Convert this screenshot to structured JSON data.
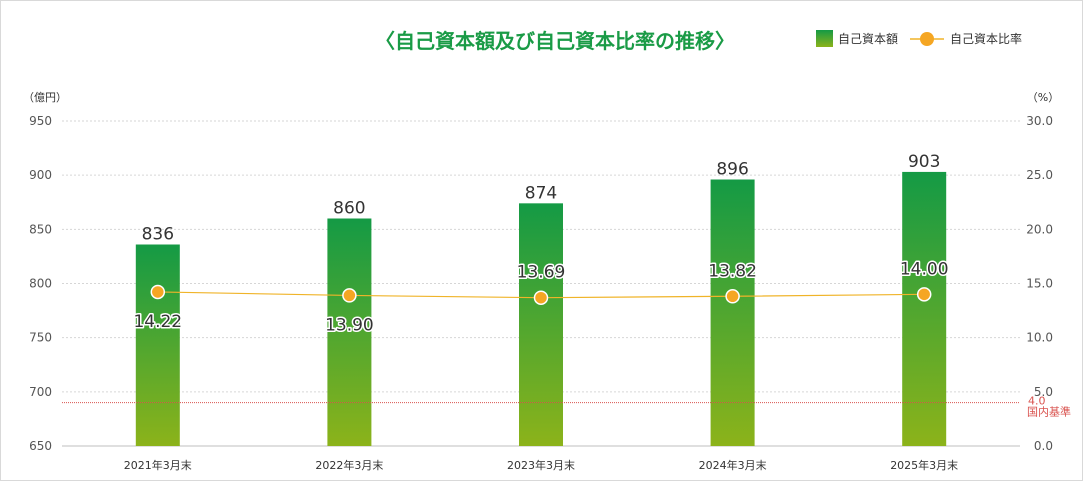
{
  "chart_data": {
    "type": "bar",
    "title": "〈自己資本額及び自己資本比率の推移〉",
    "categories": [
      "2021年3月末",
      "2022年3月末",
      "2023年3月末",
      "2024年3月末",
      "2025年3月末"
    ],
    "series": [
      {
        "name": "自己資本額",
        "type": "bar",
        "axis": "left",
        "values": [
          836,
          860,
          874,
          896,
          903
        ],
        "labels": [
          "836",
          "860",
          "874",
          "896",
          "903"
        ]
      },
      {
        "name": "自己資本比率",
        "type": "line",
        "axis": "right",
        "values": [
          14.22,
          13.9,
          13.69,
          13.82,
          14.0
        ],
        "labels": [
          "14.22",
          "13.90",
          "13.69",
          "13.82",
          "14.00"
        ]
      }
    ],
    "y_left": {
      "unit": "（億円）",
      "min": 650,
      "max": 950,
      "ticks": [
        "650",
        "700",
        "750",
        "800",
        "850",
        "900",
        "950"
      ]
    },
    "y_right": {
      "unit": "（%）",
      "min": 0,
      "max": 30,
      "ticks": [
        "0.0",
        "5.0",
        "10.0",
        "15.0",
        "20.0",
        "25.0",
        "30.0"
      ]
    },
    "reference_line": {
      "value": 4.0,
      "value_label": "4.0",
      "label": "国内基準",
      "color": "#d9534f"
    },
    "legend_position": "top-right",
    "grid": true,
    "colors": {
      "bar_top": "#149a45",
      "bar_bottom": "#8cb31a",
      "line": "#f0b429",
      "marker": "#f5a623",
      "title": "#1a9b46",
      "axis_text": "#555555",
      "grid": "#d6d6d6"
    }
  }
}
